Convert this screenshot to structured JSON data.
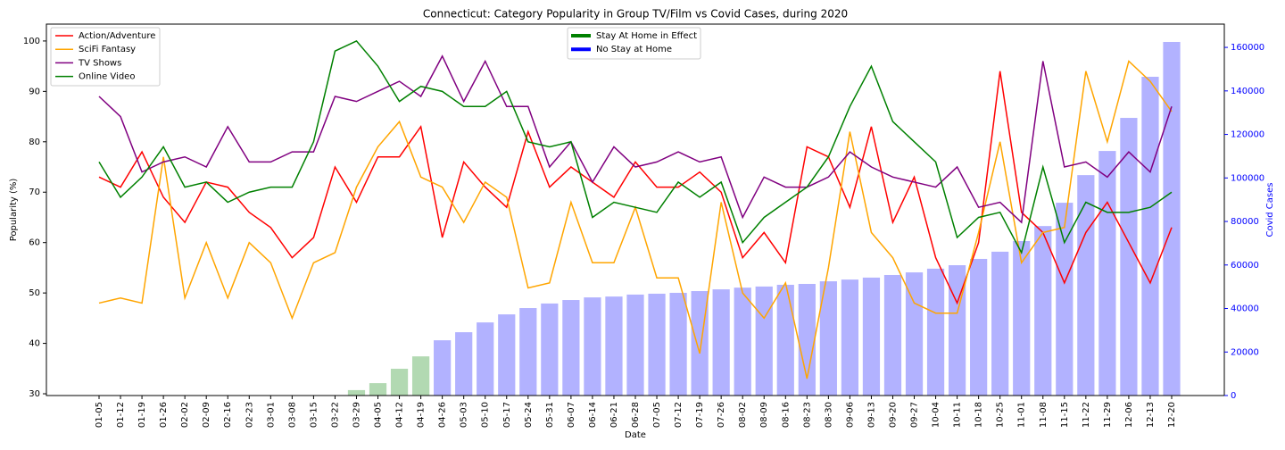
{
  "chart_data": {
    "type": "line",
    "title": "Connecticut: Category Popularity in Group TV/Film vs Covid Cases, during 2020",
    "x_label": "Date",
    "y_label": "Popularity (%)",
    "y2_label": "Covid Cases",
    "categories": [
      "01-05",
      "01-12",
      "01-19",
      "01-26",
      "02-02",
      "02-09",
      "02-16",
      "02-23",
      "03-01",
      "03-08",
      "03-15",
      "03-22",
      "03-29",
      "04-05",
      "04-12",
      "04-19",
      "04-26",
      "05-03",
      "05-10",
      "05-17",
      "05-24",
      "05-31",
      "06-07",
      "06-14",
      "06-21",
      "06-28",
      "07-05",
      "07-12",
      "07-19",
      "07-26",
      "08-02",
      "08-09",
      "08-16",
      "08-23",
      "08-30",
      "09-06",
      "09-13",
      "09-20",
      "09-27",
      "10-04",
      "10-11",
      "10-18",
      "10-25",
      "11-01",
      "11-08",
      "11-15",
      "11-22",
      "11-29",
      "12-06",
      "12-13",
      "12-20"
    ],
    "ylim": [
      29.65,
      103.35
    ],
    "yticks": [
      30,
      40,
      50,
      60,
      70,
      80,
      90,
      100
    ],
    "y2lim": [
      0,
      170700
    ],
    "y2ticks": [
      0,
      20000,
      40000,
      60000,
      80000,
      100000,
      120000,
      140000,
      160000
    ],
    "series": [
      {
        "name": "Action/Adventure",
        "color": "#ff0000",
        "values": [
          73,
          71,
          78,
          69,
          64,
          72,
          71,
          66,
          63,
          57,
          61,
          75,
          68,
          77,
          77,
          83,
          61,
          76,
          71,
          67,
          82,
          71,
          75,
          72,
          69,
          76,
          71,
          71,
          74,
          70,
          57,
          62,
          56,
          79,
          77,
          67,
          83,
          64,
          73,
          57,
          48,
          60,
          94,
          66,
          62,
          52,
          62,
          68,
          60,
          52,
          63
        ]
      },
      {
        "name": "SciFi Fantasy",
        "color": "#ffa500",
        "values": [
          48,
          49,
          48,
          77,
          49,
          60,
          49,
          60,
          56,
          45,
          56,
          58,
          71,
          79,
          84,
          73,
          71,
          64,
          72,
          69,
          51,
          52,
          68,
          56,
          56,
          67,
          53,
          53,
          38,
          68,
          50,
          45,
          52,
          33,
          55,
          82,
          62,
          57,
          48,
          46,
          46,
          62,
          80,
          56,
          62,
          63,
          94,
          80,
          96,
          92,
          86
        ]
      },
      {
        "name": "TV Shows",
        "color": "#800080",
        "values": [
          89,
          85,
          74,
          76,
          77,
          75,
          83,
          76,
          76,
          78,
          78,
          89,
          88,
          90,
          92,
          89,
          97,
          88,
          96,
          87,
          87,
          75,
          80,
          72,
          79,
          75,
          76,
          78,
          76,
          77,
          65,
          73,
          71,
          71,
          73,
          78,
          75,
          73,
          72,
          71,
          75,
          67,
          68,
          64,
          96,
          75,
          76,
          73,
          78,
          74,
          87
        ]
      },
      {
        "name": "Online Video",
        "color": "#008000",
        "values": [
          76,
          69,
          73,
          79,
          71,
          72,
          68,
          70,
          71,
          71,
          80,
          98,
          100,
          95,
          88,
          91,
          90,
          87,
          87,
          90,
          80,
          79,
          80,
          65,
          68,
          67,
          66,
          72,
          69,
          72,
          60,
          65,
          68,
          71,
          77,
          87,
          95,
          84,
          80,
          76,
          61,
          65,
          66,
          58,
          75,
          60,
          68,
          66,
          66,
          67,
          70
        ]
      },
      {
        "type": "bar",
        "axis": "y2",
        "values": [
          0,
          0,
          0,
          0,
          0,
          0,
          0,
          0,
          0,
          0,
          0,
          0,
          2500,
          5700,
          12300,
          18000,
          25400,
          29100,
          33600,
          37300,
          40200,
          42300,
          43900,
          45100,
          45500,
          46400,
          46800,
          47200,
          48000,
          48800,
          49600,
          50100,
          50900,
          51300,
          52500,
          53300,
          54200,
          55400,
          56600,
          58300,
          59900,
          62800,
          66100,
          71000,
          77900,
          88600,
          101300,
          112400,
          127600,
          146500,
          162500
        ],
        "colors": [
          "#0000ff",
          "#0000ff",
          "#0000ff",
          "#0000ff",
          "#0000ff",
          "#0000ff",
          "#0000ff",
          "#0000ff",
          "#0000ff",
          "#0000ff",
          "#0000ff",
          "#0000ff",
          "#008000",
          "#008000",
          "#008000",
          "#008000",
          "#0000ff",
          "#0000ff",
          "#0000ff",
          "#0000ff",
          "#0000ff",
          "#0000ff",
          "#0000ff",
          "#0000ff",
          "#0000ff",
          "#0000ff",
          "#0000ff",
          "#0000ff",
          "#0000ff",
          "#0000ff",
          "#0000ff",
          "#0000ff",
          "#0000ff",
          "#0000ff",
          "#0000ff",
          "#0000ff",
          "#0000ff",
          "#0000ff",
          "#0000ff",
          "#0000ff",
          "#0000ff",
          "#0000ff",
          "#0000ff",
          "#0000ff",
          "#0000ff",
          "#0000ff",
          "#0000ff",
          "#0000ff",
          "#0000ff",
          "#0000ff",
          "#0000ff"
        ]
      }
    ],
    "bar_legend": [
      {
        "label": "Stay At Home in Effect",
        "color": "#008000"
      },
      {
        "label": "No Stay at Home",
        "color": "#0000ff"
      }
    ],
    "legend": "upper left"
  }
}
